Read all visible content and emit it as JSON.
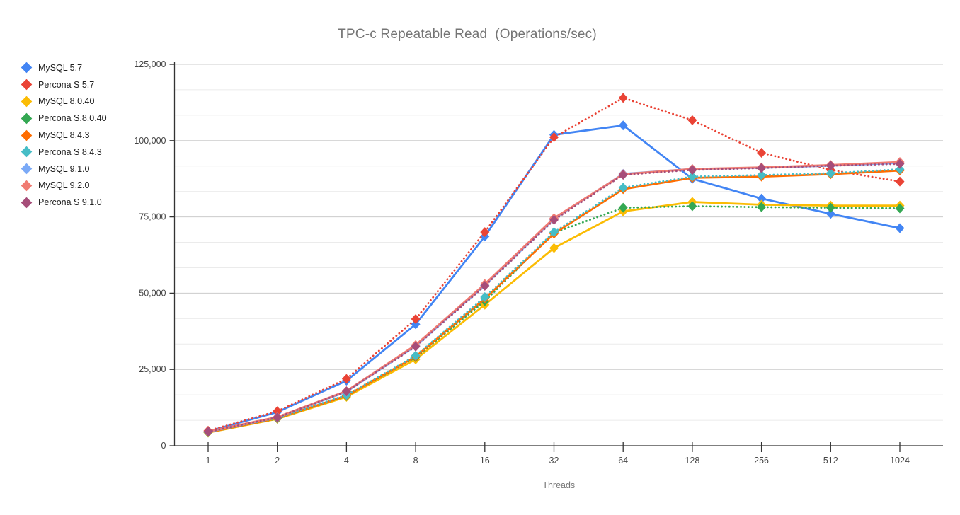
{
  "title": "TPC-c Repeatable Read  (Operations/sec)",
  "chart_data": {
    "type": "line",
    "title": "TPC-c Repeatable Read  (Operations/sec)",
    "xlabel": "Threads",
    "ylabel": "",
    "x_axis_type": "category",
    "categories": [
      "1",
      "2",
      "4",
      "8",
      "16",
      "32",
      "64",
      "128",
      "256",
      "512",
      "1024"
    ],
    "ylim": [
      0,
      125000
    ],
    "y_major_ticks": [
      0,
      25000,
      50000,
      75000,
      100000,
      125000
    ],
    "y_tick_labels": [
      "0",
      "25,000",
      "50,000",
      "75,000",
      "100,000",
      "125,000"
    ],
    "y_minor_step": 8333.333,
    "grid": "major and minor horizontal gridlines, no vertical gridlines",
    "legend_position": "left",
    "point_shape": "diamond",
    "series": [
      {
        "name": "MySQL 5.7",
        "color": "#4285F4",
        "style": "solid",
        "values": [
          4700,
          11000,
          21300,
          39800,
          68600,
          101900,
          105000,
          87500,
          81000,
          76000,
          71300
        ]
      },
      {
        "name": "Percona S 5.7",
        "color": "#EA4335",
        "style": "dotted",
        "values": [
          4900,
          11300,
          21900,
          41500,
          70000,
          101100,
          114000,
          106700,
          96000,
          90400,
          86600
        ]
      },
      {
        "name": "MySQL 8.0.40",
        "color": "#FBBC04",
        "style": "solid",
        "values": [
          4300,
          8800,
          16000,
          28300,
          46200,
          64800,
          76800,
          79900,
          79000,
          78700,
          78700
        ]
      },
      {
        "name": "Percona S.8.0.40",
        "color": "#34A853",
        "style": "dotted",
        "values": [
          4350,
          8900,
          16300,
          29000,
          47400,
          69800,
          78000,
          78500,
          78200,
          78000,
          77800
        ]
      },
      {
        "name": "MySQL 8.4.3",
        "color": "#FF6D01",
        "style": "solid",
        "values": [
          4400,
          9000,
          16400,
          29200,
          48200,
          69500,
          84100,
          87800,
          88200,
          89000,
          90200
        ]
      },
      {
        "name": "Percona S 8.4.3",
        "color": "#46BDC6",
        "style": "dotted",
        "values": [
          4500,
          9100,
          16600,
          29500,
          48700,
          70000,
          84600,
          88200,
          88700,
          89300,
          90600
        ]
      },
      {
        "name": "MySQL 9.1.0",
        "color": "#7BAAF7",
        "style": "solid",
        "values": [
          4600,
          9300,
          17700,
          32700,
          52600,
          74400,
          89100,
          90700,
          91100,
          91800,
          92700
        ]
      },
      {
        "name": "MySQL 9.2.0",
        "color": "#F07B72",
        "style": "solid",
        "values": [
          4650,
          9400,
          17900,
          33000,
          53000,
          74600,
          89000,
          90700,
          91200,
          92000,
          93000
        ]
      },
      {
        "name": "Percona S 9.1.0",
        "color": "#A64D79",
        "style": "dotted",
        "values": [
          4600,
          9250,
          17800,
          32500,
          52400,
          74000,
          88800,
          90400,
          91000,
          91800,
          92400
        ]
      }
    ],
    "colors": {
      "title_text": "#757575",
      "axis_label_text": "#757575",
      "tick_label_text": "#444444",
      "legend_text": "#212121",
      "axis_line": "#333333",
      "major_gridline": "#cccccc",
      "minor_gridline": "#ebebeb"
    }
  }
}
